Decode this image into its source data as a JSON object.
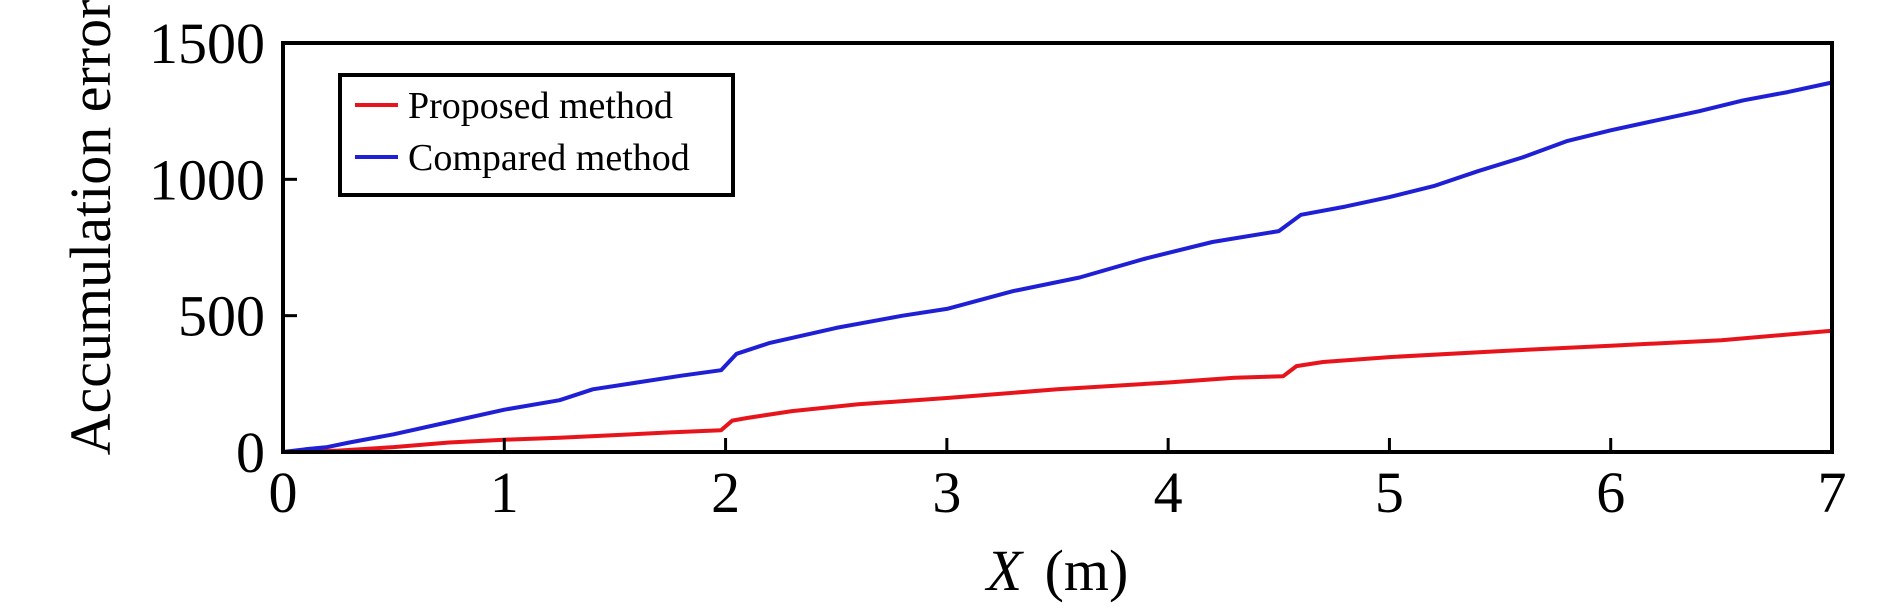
{
  "chart_data": {
    "type": "line",
    "title": "",
    "xlabel": "X",
    "xlabel_unit": "(m)",
    "ylabel": "Accumulation error",
    "xlim": [
      0,
      7
    ],
    "ylim": [
      0,
      1500
    ],
    "xticks": [
      0,
      1,
      2,
      3,
      4,
      5,
      6,
      7
    ],
    "yticks": [
      0,
      500,
      1000,
      1500
    ],
    "grid": false,
    "legend_position": "top-left",
    "series": [
      {
        "name": "Proposed method",
        "color": "#e8141b",
        "x": [
          0,
          0.25,
          0.5,
          0.75,
          1.0,
          1.25,
          1.5,
          1.75,
          1.98,
          2.03,
          2.1,
          2.3,
          2.6,
          3.0,
          3.5,
          4.0,
          4.3,
          4.52,
          4.58,
          4.7,
          5.0,
          5.5,
          6.0,
          6.5,
          7.0
        ],
        "y": [
          0,
          5,
          18,
          35,
          45,
          52,
          62,
          72,
          80,
          115,
          125,
          150,
          175,
          198,
          230,
          255,
          272,
          278,
          315,
          330,
          348,
          370,
          390,
          410,
          445
        ]
      },
      {
        "name": "Compared method",
        "color": "#1f1fd6",
        "x": [
          0,
          0.1,
          0.2,
          0.3,
          0.5,
          0.75,
          1.0,
          1.25,
          1.4,
          1.6,
          1.8,
          1.98,
          2.05,
          2.2,
          2.5,
          2.8,
          3.0,
          3.3,
          3.6,
          3.9,
          4.2,
          4.5,
          4.6,
          4.8,
          5.0,
          5.2,
          5.4,
          5.6,
          5.8,
          6.0,
          6.2,
          6.4,
          6.6,
          6.8,
          7.0
        ],
        "y": [
          0,
          10,
          18,
          35,
          65,
          110,
          155,
          190,
          230,
          255,
          280,
          300,
          360,
          400,
          455,
          500,
          525,
          590,
          640,
          710,
          770,
          810,
          870,
          900,
          935,
          975,
          1030,
          1080,
          1140,
          1180,
          1215,
          1250,
          1290,
          1320,
          1355
        ]
      }
    ]
  }
}
